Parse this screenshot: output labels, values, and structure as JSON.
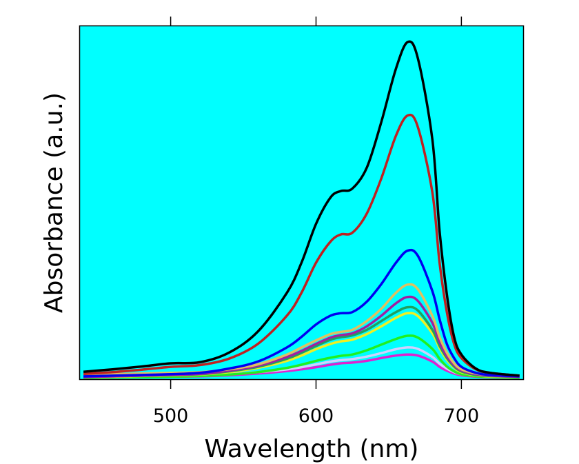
{
  "chart_data": {
    "type": "line",
    "title": "",
    "xlabel": "Wavelength (nm)",
    "ylabel": "Absorbance (a.u.)",
    "xlim": [
      437.6,
      742.5
    ],
    "ylim": [
      0,
      1.0
    ],
    "xticks": [
      500,
      600,
      700
    ],
    "xtick_labels": [
      "500",
      "600",
      "700"
    ],
    "yticks": [],
    "grid": false,
    "legend": "none",
    "background_color": "#00ffff",
    "x": [
      440,
      460,
      480,
      500,
      520,
      540,
      560,
      580,
      590,
      600,
      610,
      617,
      625,
      635,
      645,
      655,
      663,
      670,
      680,
      685,
      690,
      695,
      700,
      710,
      720,
      740
    ],
    "series": [
      {
        "name": "black",
        "color": "#000000",
        "values": [
          0.021,
          0.028,
          0.036,
          0.045,
          0.048,
          0.075,
          0.135,
          0.245,
          0.33,
          0.44,
          0.515,
          0.533,
          0.54,
          0.6,
          0.73,
          0.88,
          0.955,
          0.91,
          0.68,
          0.42,
          0.24,
          0.12,
          0.07,
          0.03,
          0.018,
          0.01
        ]
      },
      {
        "name": "red",
        "color": "#c02020",
        "values": [
          0.015,
          0.02,
          0.027,
          0.035,
          0.04,
          0.058,
          0.1,
          0.18,
          0.245,
          0.33,
          0.39,
          0.41,
          0.415,
          0.47,
          0.57,
          0.69,
          0.747,
          0.715,
          0.53,
          0.33,
          0.19,
          0.1,
          0.06,
          0.028,
          0.018,
          0.01
        ]
      },
      {
        "name": "blue",
        "color": "#0000f0",
        "values": [
          0.008,
          0.01,
          0.012,
          0.014,
          0.018,
          0.03,
          0.05,
          0.09,
          0.12,
          0.155,
          0.18,
          0.187,
          0.19,
          0.22,
          0.27,
          0.33,
          0.364,
          0.35,
          0.25,
          0.17,
          0.1,
          0.06,
          0.035,
          0.018,
          0.012,
          0.008
        ]
      },
      {
        "name": "tan",
        "color": "#e0c060",
        "values": [
          0.012,
          0.014,
          0.016,
          0.018,
          0.02,
          0.028,
          0.042,
          0.07,
          0.09,
          0.11,
          0.128,
          0.134,
          0.14,
          0.165,
          0.2,
          0.245,
          0.268,
          0.255,
          0.18,
          0.12,
          0.075,
          0.045,
          0.028,
          0.016,
          0.012,
          0.01
        ]
      },
      {
        "name": "purple",
        "color": "#a020a0",
        "values": [
          0.006,
          0.008,
          0.01,
          0.012,
          0.015,
          0.024,
          0.038,
          0.063,
          0.08,
          0.1,
          0.118,
          0.125,
          0.13,
          0.15,
          0.18,
          0.215,
          0.233,
          0.222,
          0.16,
          0.105,
          0.065,
          0.04,
          0.025,
          0.014,
          0.01,
          0.007
        ]
      },
      {
        "name": "dark-green",
        "color": "#20a060",
        "values": [
          0.006,
          0.008,
          0.01,
          0.012,
          0.014,
          0.022,
          0.035,
          0.058,
          0.075,
          0.094,
          0.112,
          0.119,
          0.124,
          0.14,
          0.165,
          0.19,
          0.204,
          0.195,
          0.14,
          0.095,
          0.06,
          0.036,
          0.022,
          0.012,
          0.009,
          0.006
        ]
      },
      {
        "name": "yellow",
        "color": "#f0f020",
        "values": [
          0.006,
          0.007,
          0.009,
          0.011,
          0.013,
          0.02,
          0.032,
          0.052,
          0.067,
          0.085,
          0.1,
          0.107,
          0.112,
          0.128,
          0.15,
          0.174,
          0.187,
          0.179,
          0.13,
          0.088,
          0.055,
          0.033,
          0.02,
          0.011,
          0.008,
          0.006
        ]
      },
      {
        "name": "green",
        "color": "#20f020",
        "values": [
          0.004,
          0.005,
          0.006,
          0.007,
          0.009,
          0.013,
          0.02,
          0.032,
          0.041,
          0.052,
          0.061,
          0.066,
          0.07,
          0.082,
          0.098,
          0.114,
          0.123,
          0.118,
          0.086,
          0.058,
          0.036,
          0.022,
          0.014,
          0.008,
          0.006,
          0.004
        ]
      },
      {
        "name": "lavender",
        "color": "#d0d0ff",
        "values": [
          0.008,
          0.009,
          0.01,
          0.011,
          0.012,
          0.015,
          0.02,
          0.028,
          0.034,
          0.042,
          0.05,
          0.054,
          0.057,
          0.064,
          0.074,
          0.085,
          0.09,
          0.086,
          0.063,
          0.044,
          0.03,
          0.02,
          0.014,
          0.009,
          0.007,
          0.006
        ]
      },
      {
        "name": "magenta",
        "color": "#e020d0",
        "values": [
          0.004,
          0.005,
          0.006,
          0.007,
          0.008,
          0.011,
          0.016,
          0.023,
          0.028,
          0.034,
          0.041,
          0.045,
          0.047,
          0.052,
          0.06,
          0.067,
          0.07,
          0.067,
          0.05,
          0.035,
          0.024,
          0.016,
          0.011,
          0.007,
          0.005,
          0.004
        ]
      }
    ]
  }
}
